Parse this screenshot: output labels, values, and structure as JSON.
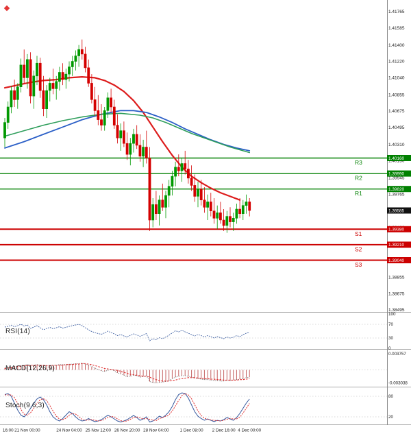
{
  "chart_data": {
    "type": "candlestick",
    "price_range": {
      "top": 1.41765,
      "bottom": 1.38495
    },
    "y_axis_labels": [
      "1.41765",
      "1.41585",
      "1.41400",
      "1.41220",
      "1.41040",
      "1.40855",
      "1.40675",
      "1.40495",
      "1.40310",
      "1.40130",
      "1.39945",
      "1.39765",
      "1.39585",
      "1.39400",
      "1.39220",
      "1.39040",
      "1.38855",
      "1.38675",
      "1.38495"
    ],
    "x_axis_labels": [
      {
        "text": "16:00",
        "i": 1
      },
      {
        "text": "21 Nov 00:00",
        "i": 7
      },
      {
        "text": "24 Nov 04:00",
        "i": 20
      },
      {
        "text": "25 Nov 12:00",
        "i": 29
      },
      {
        "text": "26 Nov 20:00",
        "i": 38
      },
      {
        "text": "28 Nov 04:00",
        "i": 47
      },
      {
        "text": "1 Dec 08:00",
        "i": 58
      },
      {
        "text": "2 Dec 16:00",
        "i": 68
      },
      {
        "text": "4 Dec 00:00",
        "i": 76
      }
    ],
    "pivot_levels": [
      {
        "label": "R3",
        "value": 1.4016,
        "tag": "1.40160",
        "type": "resistance"
      },
      {
        "label": "R2",
        "value": 1.3999,
        "tag": "1.39990",
        "type": "resistance"
      },
      {
        "label": "R1",
        "value": 1.3982,
        "tag": "1.39820",
        "type": "resistance"
      },
      {
        "label": "S1",
        "value": 1.3938,
        "tag": "1.39380",
        "type": "support"
      },
      {
        "label": "S2",
        "value": 1.3921,
        "tag": "1.39210",
        "type": "support"
      },
      {
        "label": "S3",
        "value": 1.3904,
        "tag": "1.39040",
        "type": "support"
      }
    ],
    "last_price": {
      "value": 1.39585,
      "label": "1.39585"
    },
    "candles": [
      [
        1.4038,
        1.406,
        1.4028,
        1.4055
      ],
      [
        1.4055,
        1.4078,
        1.4048,
        1.4072
      ],
      [
        1.4072,
        1.4095,
        1.4065,
        1.409
      ],
      [
        1.409,
        1.4102,
        1.4072,
        1.408
      ],
      [
        1.408,
        1.4098,
        1.407,
        1.4094
      ],
      [
        1.4094,
        1.4125,
        1.4088,
        1.4118
      ],
      [
        1.4118,
        1.4135,
        1.4098,
        1.4104
      ],
      [
        1.4104,
        1.413,
        1.4092,
        1.4124
      ],
      [
        1.4124,
        1.4132,
        1.4076,
        1.4084
      ],
      [
        1.4084,
        1.4112,
        1.407,
        1.4106
      ],
      [
        1.4106,
        1.4128,
        1.4096,
        1.412
      ],
      [
        1.412,
        1.4126,
        1.4082,
        1.409
      ],
      [
        1.409,
        1.4106,
        1.4062,
        1.407
      ],
      [
        1.407,
        1.4096,
        1.406,
        1.409
      ],
      [
        1.409,
        1.4104,
        1.4078,
        1.4098
      ],
      [
        1.4098,
        1.4114,
        1.4086,
        1.4092
      ],
      [
        1.4092,
        1.4106,
        1.408,
        1.41
      ],
      [
        1.41,
        1.4116,
        1.409,
        1.411
      ],
      [
        1.411,
        1.412,
        1.4096,
        1.4102
      ],
      [
        1.4102,
        1.4114,
        1.4092,
        1.4108
      ],
      [
        1.4108,
        1.4122,
        1.41,
        1.4116
      ],
      [
        1.4116,
        1.4128,
        1.4106,
        1.4122
      ],
      [
        1.4122,
        1.4134,
        1.4112,
        1.4128
      ],
      [
        1.4128,
        1.414,
        1.4116,
        1.4135
      ],
      [
        1.4135,
        1.4146,
        1.4124,
        1.413
      ],
      [
        1.413,
        1.4138,
        1.411,
        1.4115
      ],
      [
        1.4115,
        1.4124,
        1.4094,
        1.4098
      ],
      [
        1.4098,
        1.4108,
        1.4076,
        1.408
      ],
      [
        1.408,
        1.4094,
        1.4062,
        1.4068
      ],
      [
        1.4068,
        1.4085,
        1.4052,
        1.4058
      ],
      [
        1.4058,
        1.4075,
        1.4046,
        1.4052
      ],
      [
        1.4052,
        1.4072,
        1.4046,
        1.4068
      ],
      [
        1.4068,
        1.4088,
        1.406,
        1.4082
      ],
      [
        1.4082,
        1.4092,
        1.4066,
        1.4072
      ],
      [
        1.4072,
        1.408,
        1.4048,
        1.4052
      ],
      [
        1.4052,
        1.4064,
        1.4032,
        1.4038
      ],
      [
        1.4038,
        1.4054,
        1.4024,
        1.4046
      ],
      [
        1.4046,
        1.4056,
        1.4028,
        1.4032
      ],
      [
        1.4032,
        1.4044,
        1.4014,
        1.402
      ],
      [
        1.402,
        1.4038,
        1.4008,
        1.4032
      ],
      [
        1.4032,
        1.4048,
        1.4022,
        1.4042
      ],
      [
        1.4042,
        1.4052,
        1.4026,
        1.403
      ],
      [
        1.403,
        1.4042,
        1.4012,
        1.4018
      ],
      [
        1.4018,
        1.4036,
        1.4006,
        1.4028
      ],
      [
        1.4028,
        1.4046,
        1.401,
        1.4016
      ],
      [
        1.4016,
        1.4028,
        1.3936,
        1.3948
      ],
      [
        1.3948,
        1.3972,
        1.394,
        1.3965
      ],
      [
        1.3965,
        1.398,
        1.3948,
        1.3955
      ],
      [
        1.3955,
        1.3975,
        1.3942,
        1.397
      ],
      [
        1.397,
        1.3988,
        1.3958,
        1.3962
      ],
      [
        1.3962,
        1.398,
        1.395,
        1.3975
      ],
      [
        1.3975,
        1.3992,
        1.3962,
        1.3985
      ],
      [
        1.3985,
        1.4002,
        1.3975,
        1.3996
      ],
      [
        1.3996,
        1.4012,
        1.3985,
        1.4006
      ],
      [
        1.4006,
        1.402,
        1.3996,
        1.4002
      ],
      [
        1.4002,
        1.4016,
        1.399,
        1.401
      ],
      [
        1.401,
        1.4024,
        1.3998,
        1.4004
      ],
      [
        1.4004,
        1.4014,
        1.3988,
        1.3994
      ],
      [
        1.3994,
        1.4008,
        1.398,
        1.3986
      ],
      [
        1.3986,
        1.3998,
        1.3968,
        1.3974
      ],
      [
        1.3974,
        1.399,
        1.3962,
        1.3982
      ],
      [
        1.3982,
        1.3992,
        1.3964,
        1.397
      ],
      [
        1.397,
        1.3984,
        1.3956,
        1.3962
      ],
      [
        1.3962,
        1.3976,
        1.3948,
        1.3968
      ],
      [
        1.3968,
        1.3978,
        1.3952,
        1.3958
      ],
      [
        1.3958,
        1.3972,
        1.3944,
        1.395
      ],
      [
        1.395,
        1.3964,
        1.3938,
        1.3956
      ],
      [
        1.3956,
        1.3968,
        1.3944,
        1.3948
      ],
      [
        1.3948,
        1.396,
        1.3936,
        1.3942
      ],
      [
        1.3942,
        1.3958,
        1.3934,
        1.3952
      ],
      [
        1.3952,
        1.3962,
        1.394,
        1.3946
      ],
      [
        1.3946,
        1.3956,
        1.3936,
        1.395
      ],
      [
        1.395,
        1.3966,
        1.3944,
        1.396
      ],
      [
        1.396,
        1.3972,
        1.395,
        1.3955
      ],
      [
        1.3955,
        1.397,
        1.3948,
        1.3964
      ],
      [
        1.3964,
        1.3976,
        1.3955,
        1.3968
      ],
      [
        1.3968,
        1.3972,
        1.3952,
        1.39585
      ]
    ],
    "moving_averages": [
      {
        "name": "ma-red",
        "color": "#dd1c1c",
        "width": 2.2,
        "points": [
          [
            0,
            1.4093
          ],
          [
            4,
            1.4096
          ],
          [
            8,
            1.4099
          ],
          [
            12,
            1.4101
          ],
          [
            16,
            1.4102
          ],
          [
            20,
            1.4104
          ],
          [
            24,
            1.4105
          ],
          [
            28,
            1.4104
          ],
          [
            31,
            1.4101
          ],
          [
            34,
            1.4096
          ],
          [
            37,
            1.4089
          ],
          [
            40,
            1.4079
          ],
          [
            43,
            1.4066
          ],
          [
            46,
            1.405
          ],
          [
            49,
            1.4034
          ],
          [
            52,
            1.4019
          ],
          [
            55,
            1.4006
          ],
          [
            58,
            1.3996
          ],
          [
            61,
            1.3989
          ],
          [
            64,
            1.3983
          ],
          [
            67,
            1.3978
          ],
          [
            70,
            1.3974
          ],
          [
            73,
            1.397
          ]
        ]
      },
      {
        "name": "ma-blue",
        "color": "#2b5fc7",
        "width": 1.8,
        "points": [
          [
            0,
            1.4027
          ],
          [
            6,
            1.4034
          ],
          [
            12,
            1.4042
          ],
          [
            18,
            1.405
          ],
          [
            24,
            1.4058
          ],
          [
            30,
            1.4064
          ],
          [
            36,
            1.4068
          ],
          [
            40,
            1.4068
          ],
          [
            44,
            1.4066
          ],
          [
            48,
            1.4061
          ],
          [
            52,
            1.4055
          ],
          [
            56,
            1.4048
          ],
          [
            60,
            1.4042
          ],
          [
            64,
            1.4036
          ],
          [
            68,
            1.4031
          ],
          [
            72,
            1.4027
          ],
          [
            76,
            1.4024
          ]
        ]
      },
      {
        "name": "ma-green",
        "color": "#2e9e5b",
        "width": 1.6,
        "points": [
          [
            0,
            1.404
          ],
          [
            6,
            1.4046
          ],
          [
            12,
            1.4052
          ],
          [
            18,
            1.4057
          ],
          [
            24,
            1.4061
          ],
          [
            30,
            1.4064
          ],
          [
            36,
            1.4065
          ],
          [
            42,
            1.4063
          ],
          [
            46,
            1.406
          ],
          [
            50,
            1.4055
          ],
          [
            54,
            1.4049
          ],
          [
            58,
            1.4043
          ],
          [
            62,
            1.4038
          ],
          [
            66,
            1.4033
          ],
          [
            70,
            1.4028
          ],
          [
            73,
            1.4025
          ],
          [
            76,
            1.4022
          ]
        ]
      }
    ],
    "indicators": {
      "rsi": {
        "label": "RSI(14)",
        "range": [
          0,
          100
        ],
        "ticks": [
          {
            "text": "100",
            "v": 100
          },
          {
            "text": "70",
            "v": 70
          },
          {
            "text": "30",
            "v": 30
          },
          {
            "text": "0",
            "v": 0
          }
        ],
        "guides": [
          70,
          30
        ],
        "values": [
          62,
          64,
          67,
          63,
          66,
          70,
          65,
          68,
          58,
          62,
          66,
          60,
          54,
          58,
          61,
          57,
          60,
          63,
          59,
          61,
          64,
          66,
          68,
          70,
          66,
          60,
          54,
          49,
          46,
          43,
          41,
          45,
          50,
          46,
          42,
          37,
          40,
          36,
          33,
          38,
          42,
          39,
          35,
          39,
          43,
          22,
          28,
          25,
          31,
          28,
          33,
          38,
          45,
          51,
          48,
          52,
          48,
          44,
          40,
          36,
          40,
          37,
          33,
          37,
          34,
          30,
          34,
          31,
          28,
          33,
          30,
          32,
          37,
          34,
          40,
          44,
          47
        ]
      },
      "macd": {
        "label": "MACD(12,26,9)",
        "range": [
          0.003757,
          -0.003038
        ],
        "ticks": [
          {
            "text": "0.003757",
            "v": 0.003757
          },
          {
            "text": "-0.003038",
            "v": -0.003038
          }
        ],
        "macd": [
          0.0004,
          0.0005,
          0.0006,
          0.0007,
          0.0008,
          0.0009,
          0.001,
          0.0011,
          0.001,
          0.001,
          0.0011,
          0.001,
          0.0009,
          0.0009,
          0.001,
          0.001,
          0.001,
          0.0011,
          0.0011,
          0.0011,
          0.0012,
          0.0012,
          0.0013,
          0.0013,
          0.0014,
          0.0012,
          0.001,
          0.0007,
          0.0004,
          0.0001,
          -0.0002,
          -0.0003,
          -0.0001,
          0.0001,
          -0.0002,
          -0.0006,
          -0.0008,
          -0.0011,
          -0.0014,
          -0.0013,
          -0.0011,
          -0.0012,
          -0.0015,
          -0.0014,
          -0.0012,
          -0.0024,
          -0.0026,
          -0.0027,
          -0.0026,
          -0.0025,
          -0.0024,
          -0.0022,
          -0.0018,
          -0.0015,
          -0.0013,
          -0.0012,
          -0.0012,
          -0.0013,
          -0.0015,
          -0.0017,
          -0.0018,
          -0.0019,
          -0.002,
          -0.002,
          -0.0021,
          -0.0022,
          -0.0022,
          -0.0023,
          -0.0023,
          -0.0022,
          -0.0022,
          -0.0021,
          -0.002,
          -0.0019,
          -0.0018,
          -0.0016,
          -0.0015
        ],
        "signal": [
          0.0003,
          0.0004,
          0.0005,
          0.0006,
          0.0007,
          0.0008,
          0.0009,
          0.0009,
          0.001,
          0.001,
          0.001,
          0.001,
          0.001,
          0.0009,
          0.0009,
          0.001,
          0.001,
          0.001,
          0.001,
          0.0011,
          0.0011,
          0.0011,
          0.0012,
          0.0012,
          0.0013,
          0.0013,
          0.0012,
          0.0011,
          0.0009,
          0.0007,
          0.0005,
          0.0003,
          0.0002,
          0.0001,
          0.0,
          -0.0001,
          -0.0003,
          -0.0005,
          -0.0007,
          -0.0009,
          -0.001,
          -0.0011,
          -0.0012,
          -0.0013,
          -0.0013,
          -0.0015,
          -0.0018,
          -0.002,
          -0.0022,
          -0.0023,
          -0.0023,
          -0.0023,
          -0.0022,
          -0.0021,
          -0.0019,
          -0.0018,
          -0.0017,
          -0.0016,
          -0.0016,
          -0.0016,
          -0.0017,
          -0.0017,
          -0.0018,
          -0.0018,
          -0.0019,
          -0.0019,
          -0.002,
          -0.002,
          -0.0021,
          -0.0021,
          -0.0021,
          -0.0021,
          -0.0021,
          -0.002,
          -0.002,
          -0.0019,
          -0.0018
        ]
      },
      "stoch": {
        "label": "Stoch(9,6,3)",
        "range": [
          0,
          100
        ],
        "ticks": [
          {
            "text": "80",
            "v": 80
          },
          {
            "text": "20",
            "v": 20
          }
        ],
        "guides": [
          80,
          20
        ],
        "k": [
          85,
          88,
          80,
          60,
          40,
          25,
          20,
          30,
          45,
          60,
          72,
          78,
          70,
          55,
          35,
          20,
          12,
          8,
          15,
          25,
          35,
          30,
          20,
          12,
          8,
          10,
          15,
          10,
          6,
          8,
          12,
          18,
          25,
          20,
          14,
          8,
          5,
          8,
          12,
          18,
          24,
          18,
          10,
          14,
          20,
          5,
          8,
          14,
          22,
          18,
          25,
          35,
          50,
          70,
          85,
          90,
          88,
          75,
          55,
          35,
          22,
          15,
          10,
          14,
          10,
          6,
          10,
          8,
          12,
          18,
          14,
          10,
          18,
          30,
          45,
          60,
          72
        ],
        "d": [
          84,
          84,
          84,
          76,
          60,
          42,
          28,
          25,
          32,
          45,
          59,
          70,
          73,
          68,
          53,
          37,
          22,
          13,
          12,
          16,
          25,
          30,
          28,
          21,
          13,
          10,
          11,
          12,
          10,
          8,
          9,
          13,
          18,
          21,
          20,
          14,
          9,
          7,
          8,
          13,
          18,
          20,
          17,
          14,
          15,
          13,
          11,
          9,
          15,
          18,
          22,
          26,
          37,
          52,
          68,
          82,
          88,
          84,
          73,
          55,
          37,
          24,
          16,
          13,
          11,
          10,
          9,
          8,
          10,
          13,
          15,
          14,
          14,
          19,
          31,
          45,
          59
        ]
      }
    },
    "colors": {
      "bull": "#009900",
      "bear": "#d40000",
      "resistance": "#008000",
      "support": "#cc0000",
      "last_tag": "#111111",
      "rsi": "#35589e",
      "macd_line": "#666666",
      "macd_signal": "#e03030",
      "stoch_k": "#35589e",
      "stoch_d": "#e03030"
    },
    "icons": {
      "corner_marker": "red-diamond"
    }
  }
}
